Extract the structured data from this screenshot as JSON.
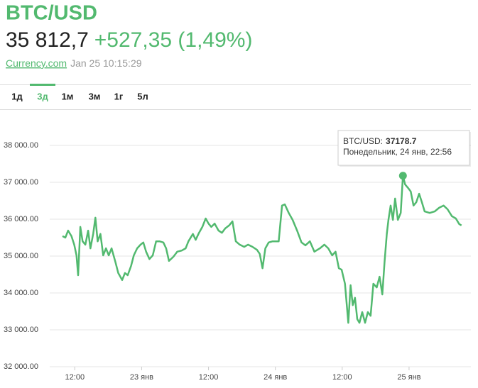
{
  "header": {
    "title": "BTC/USD",
    "price": "35 812,7",
    "change": "+527,35 (1,49%)",
    "source": "Currency.com",
    "timestamp": "Jan 25 10:15:29"
  },
  "tabs": [
    "1д",
    "3д",
    "1м",
    "3м",
    "1г",
    "5л"
  ],
  "active_tab": 1,
  "chart_data": {
    "type": "line",
    "color": "#52b96f",
    "grid": true,
    "tooltip": {
      "label": "BTC/USD:",
      "date": "Понедельник, 24 янв, 22:56"
    },
    "xlim": [
      7.5,
      83.1
    ],
    "ylim": [
      32000,
      38500
    ],
    "xticks": [
      {
        "value": 12,
        "label": "12:00"
      },
      {
        "value": 24,
        "label": "23 янв"
      },
      {
        "value": 36,
        "label": "12:00"
      },
      {
        "value": 48,
        "label": "24 янв"
      },
      {
        "value": 60,
        "label": "12:00"
      },
      {
        "value": 72,
        "label": "25 янв"
      }
    ],
    "yticks": [
      {
        "value": 32000,
        "label": "32 000.00"
      },
      {
        "value": 33000,
        "label": "33 000.00"
      },
      {
        "value": 34000,
        "label": "34 000.00"
      },
      {
        "value": 35000,
        "label": "35 000.00"
      },
      {
        "value": 36000,
        "label": "36 000.00"
      },
      {
        "value": 37000,
        "label": "37 000.00"
      },
      {
        "value": 38000,
        "label": "38 000.00"
      }
    ],
    "x": [
      9.8,
      10.3,
      10.8,
      11.4,
      11.9,
      12.3,
      12.6,
      13.0,
      13.4,
      13.9,
      14.4,
      14.8,
      15.3,
      15.7,
      16.1,
      16.6,
      17.1,
      17.6,
      18.1,
      18.6,
      19.3,
      19.8,
      20.5,
      21.0,
      21.5,
      22.1,
      22.6,
      23.2,
      23.8,
      24.3,
      24.8,
      25.4,
      26.0,
      26.6,
      27.2,
      27.9,
      28.4,
      28.9,
      29.7,
      30.4,
      31.2,
      31.9,
      32.4,
      33.2,
      33.7,
      34.3,
      34.9,
      35.5,
      36.0,
      36.5,
      37.1,
      37.8,
      38.4,
      39.0,
      39.7,
      40.3,
      40.9,
      41.6,
      42.4,
      43.1,
      43.9,
      44.7,
      45.2,
      45.7,
      46.2,
      46.8,
      47.5,
      48.6,
      49.2,
      49.7,
      50.4,
      51.1,
      51.9,
      52.7,
      53.4,
      54.2,
      55.0,
      56.0,
      56.8,
      57.5,
      58.2,
      58.8,
      59.4,
      59.9,
      60.5,
      61.1,
      61.5,
      61.9,
      62.3,
      62.7,
      63.1,
      63.6,
      64.1,
      64.6,
      65.1,
      65.6,
      66.2,
      66.7,
      67.2,
      67.6,
      68.0,
      68.3,
      68.7,
      69.1,
      69.5,
      70.0,
      70.5,
      70.9,
      71.3,
      71.8,
      72.3,
      72.8,
      73.3,
      73.8,
      74.3,
      74.8,
      75.7,
      76.6,
      77.4,
      78.2,
      78.9,
      79.7,
      80.4,
      81.0,
      81.4
    ],
    "values": [
      35540,
      35500,
      35690,
      35540,
      35310,
      35020,
      34480,
      35790,
      35400,
      35310,
      35690,
      35210,
      35600,
      36040,
      35400,
      35600,
      35020,
      35210,
      35020,
      35210,
      34830,
      34540,
      34350,
      34540,
      34480,
      34730,
      35020,
      35210,
      35310,
      35370,
      35120,
      34920,
      35020,
      35400,
      35400,
      35370,
      35210,
      34870,
      34980,
      35120,
      35150,
      35210,
      35400,
      35600,
      35440,
      35630,
      35790,
      36020,
      35880,
      35790,
      35880,
      35690,
      35630,
      35750,
      35830,
      35940,
      35400,
      35310,
      35250,
      35310,
      35250,
      35170,
      35060,
      34670,
      35210,
      35370,
      35400,
      35400,
      36370,
      36400,
      36170,
      35980,
      35690,
      35370,
      35290,
      35400,
      35120,
      35210,
      35310,
      35210,
      35020,
      35120,
      34670,
      34630,
      34250,
      33190,
      34210,
      33670,
      33870,
      33290,
      33190,
      33480,
      33190,
      33480,
      33380,
      34250,
      34150,
      34440,
      33960,
      34830,
      35600,
      35980,
      36370,
      35980,
      36560,
      35980,
      36170,
      37178.7,
      36940,
      36850,
      36750,
      36370,
      36460,
      36690,
      36460,
      36210,
      36170,
      36210,
      36310,
      36370,
      36270,
      36080,
      36020,
      35870,
      35830
    ]
  }
}
